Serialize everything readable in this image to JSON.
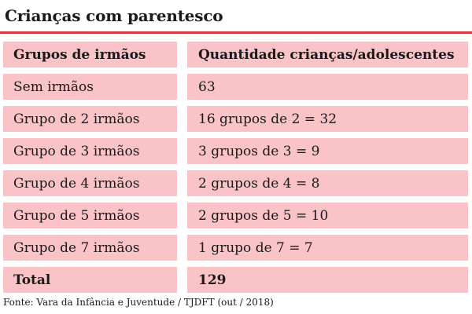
{
  "title": "Crianças com parentesco",
  "colors": {
    "accent_rule": "#d63a3a",
    "cell_background": "#f9c3c8",
    "text": "#1a1a1a"
  },
  "table": {
    "headers": [
      "Grupos de irmãos",
      "Quantidade crianças/adolescentes"
    ],
    "rows": [
      [
        "Sem irmãos",
        "63"
      ],
      [
        "Grupo de 2 irmãos",
        "16 grupos de 2 = 32"
      ],
      [
        "Grupo de 3 irmãos",
        "3 grupos de 3 = 9"
      ],
      [
        "Grupo de 4 irmãos",
        "2 grupos de 4 = 8"
      ],
      [
        "Grupo de 5 irmãos",
        "2 grupos de 5 = 10"
      ],
      [
        "Grupo de 7 irmãos",
        "1 grupo de 7 = 7"
      ]
    ],
    "total": [
      "Total",
      "129"
    ]
  },
  "source": "Fonte: Vara da Infância e Juventude / TJDFT (out / 2018)"
}
